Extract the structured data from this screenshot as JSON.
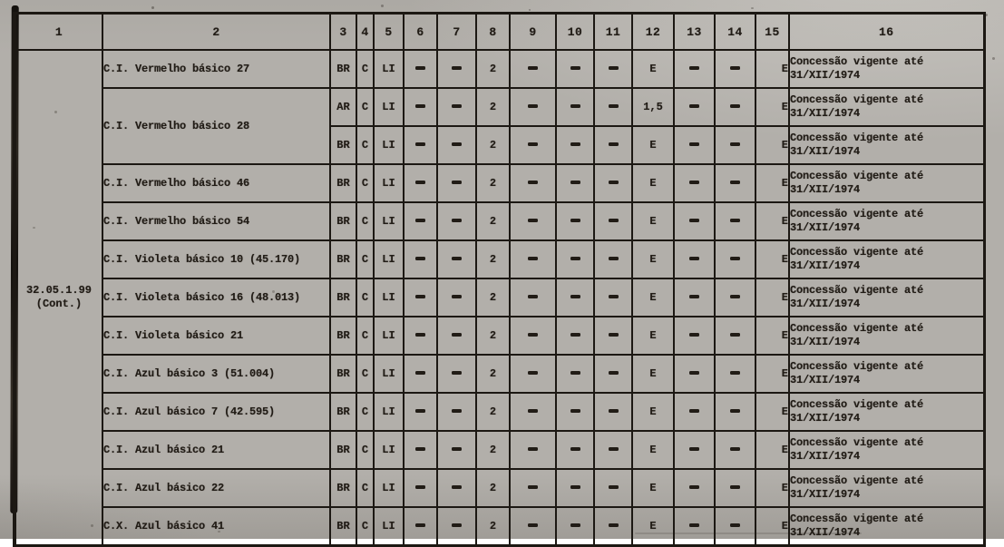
{
  "page": {
    "paper_color": "#b2afaa",
    "ink_color": "#211c16"
  },
  "table": {
    "header_labels": [
      "1",
      "2",
      "3",
      "4",
      "5",
      "6",
      "7",
      "8",
      "9",
      "10",
      "11",
      "12",
      "13",
      "14",
      "15",
      "16"
    ],
    "group": {
      "code": "32.05.1.99",
      "cont": "(Cont.)"
    },
    "rows": [
      {
        "name": "C.I. Vermelho básico 27",
        "name_rowspan": 1,
        "values": [
          "BR",
          "C",
          "LI",
          "-",
          "-",
          "2",
          "-",
          "-",
          "-",
          "E",
          "-",
          "-",
          "E"
        ],
        "note": [
          "Concessão vigente até",
          "31/XII/1974"
        ]
      },
      {
        "name": "C.I. Vermelho básico 28",
        "name_rowspan": 2,
        "values": [
          "AR",
          "C",
          "LI",
          "-",
          "-",
          "2",
          "-",
          "-",
          "-",
          "1,5",
          "-",
          "-",
          "E"
        ],
        "note": [
          "Concessão vigente até",
          "31/XII/1974"
        ]
      },
      {
        "name": null,
        "name_rowspan": 0,
        "values": [
          "BR",
          "C",
          "LI",
          "-",
          "-",
          "2",
          "-",
          "-",
          "-",
          "E",
          "-",
          "-",
          "E"
        ],
        "note": [
          "Concessão vigente até",
          "31/XII/1974"
        ]
      },
      {
        "name": "C.I. Vermelho básico 46",
        "name_rowspan": 1,
        "values": [
          "BR",
          "C",
          "LI",
          "-",
          "-",
          "2",
          "-",
          "-",
          "-",
          "E",
          "-",
          "-",
          "E"
        ],
        "note": [
          "Concessão vigente até",
          "31/XII/1974"
        ]
      },
      {
        "name": "C.I. Vermelho básico 54",
        "name_rowspan": 1,
        "values": [
          "BR",
          "C",
          "LI",
          "-",
          "-",
          "2",
          "-",
          "-",
          "-",
          "E",
          "-",
          "-",
          "E"
        ],
        "note": [
          "Concessão vigente até",
          "31/XII/1974"
        ]
      },
      {
        "name": "C.I. Violeta básico 10 (45.170)",
        "name_rowspan": 1,
        "values": [
          "BR",
          "C",
          "LI",
          "-",
          "-",
          "2",
          "-",
          "-",
          "-",
          "E",
          "-",
          "-",
          "E"
        ],
        "note": [
          "Concessão vigente até",
          "31/XII/1974"
        ]
      },
      {
        "name": "C.I. Violeta básico 16 (48.013)",
        "name_rowspan": 1,
        "values": [
          "BR",
          "C",
          "LI",
          "-",
          "-",
          "2",
          "-",
          "-",
          "-",
          "E",
          "-",
          "-",
          "E"
        ],
        "note": [
          "Concessão vigente até",
          "31/XII/1974"
        ]
      },
      {
        "name": "C.I. Violeta básico 21",
        "name_rowspan": 1,
        "values": [
          "BR",
          "C",
          "LI",
          "-",
          "-",
          "2",
          "-",
          "-",
          "-",
          "E",
          "-",
          "-",
          "E"
        ],
        "note": [
          "Concessão vigente até",
          "31/XII/1974"
        ]
      },
      {
        "name": "C.I. Azul básico 3 (51.004)",
        "name_rowspan": 1,
        "values": [
          "BR",
          "C",
          "LI",
          "-",
          "-",
          "2",
          "-",
          "-",
          "-",
          "E",
          "-",
          "-",
          "E"
        ],
        "note": [
          "Concessão vigente até",
          "31/XII/1974"
        ]
      },
      {
        "name": "C.I. Azul básico 7 (42.595)",
        "name_rowspan": 1,
        "values": [
          "BR",
          "C",
          "LI",
          "-",
          "-",
          "2",
          "-",
          "-",
          "-",
          "E",
          "-",
          "-",
          "E"
        ],
        "note": [
          "Concessão vigente até",
          "31/XII/1974"
        ]
      },
      {
        "name": "C.I. Azul básico 21",
        "name_rowspan": 1,
        "values": [
          "BR",
          "C",
          "LI",
          "-",
          "-",
          "2",
          "-",
          "-",
          "-",
          "E",
          "-",
          "-",
          "E"
        ],
        "note": [
          "Concessão vigente até",
          "31/XII/1974"
        ]
      },
      {
        "name": "C.I. Azul básico 22",
        "name_rowspan": 1,
        "values": [
          "BR",
          "C",
          "LI",
          "-",
          "-",
          "2",
          "-",
          "-",
          "-",
          "E",
          "-",
          "-",
          "E"
        ],
        "note": [
          "Concessão vigente até",
          "31/XII/1974"
        ]
      },
      {
        "name": "C.X. Azul básico 41",
        "name_rowspan": 1,
        "values": [
          "BR",
          "C",
          "LI",
          "-",
          "-",
          "2",
          "-",
          "-",
          "-",
          "E",
          "-",
          "-",
          "E"
        ],
        "note": [
          "Concessão vigente até",
          "31/XII/1974"
        ]
      }
    ]
  }
}
